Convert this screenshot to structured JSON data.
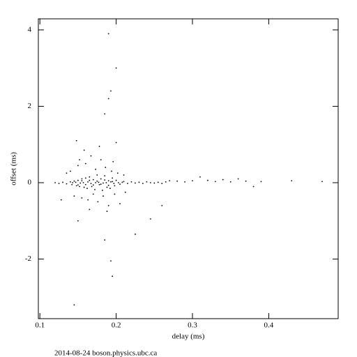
{
  "chart_data": {
    "type": "scatter",
    "xlabel": "delay (ms)",
    "ylabel": "offset (ms)",
    "footer": "2014-08-24 boson.physics.ubc.ca",
    "xlim": [
      0.098,
      0.491
    ],
    "ylim": [
      -3.56,
      4.29
    ],
    "xticks": [
      0.1,
      0.2,
      0.3,
      0.4
    ],
    "yticks": [
      -2,
      0,
      2,
      4
    ],
    "color": "#000000",
    "series": [
      {
        "x": [
          0.12,
          0.125,
          0.13,
          0.135,
          0.14,
          0.142,
          0.145,
          0.148,
          0.15,
          0.152,
          0.155,
          0.158,
          0.16,
          0.162,
          0.165,
          0.168,
          0.17,
          0.172,
          0.175,
          0.178,
          0.18,
          0.182,
          0.185,
          0.188,
          0.19,
          0.192,
          0.195,
          0.198,
          0.2,
          0.205,
          0.21,
          0.215,
          0.22,
          0.225,
          0.23,
          0.235,
          0.24,
          0.245,
          0.25,
          0.255,
          0.26,
          0.265,
          0.27,
          0.14,
          0.145,
          0.15,
          0.155,
          0.16,
          0.163,
          0.167,
          0.17,
          0.173,
          0.176,
          0.18,
          0.183,
          0.186,
          0.19,
          0.194,
          0.198,
          0.202,
          0.205,
          0.21,
          0.135,
          0.128,
          0.158,
          0.178,
          0.165,
          0.188,
          0.152,
          0.196,
          0.212,
          0.143,
          0.147,
          0.153,
          0.157,
          0.163,
          0.167,
          0.173,
          0.177,
          0.183,
          0.187,
          0.193,
          0.197,
          0.203,
          0.208,
          0.15,
          0.16,
          0.17,
          0.18,
          0.19,
          0.155,
          0.165,
          0.175,
          0.185,
          0.195,
          0.28,
          0.29,
          0.3,
          0.31,
          0.32,
          0.33,
          0.34,
          0.35,
          0.36,
          0.37,
          0.38,
          0.39,
          0.43,
          0.47,
          0.19,
          0.2,
          0.193,
          0.19,
          0.185,
          0.148,
          0.2,
          0.15,
          0.185,
          0.193,
          0.195,
          0.145,
          0.225,
          0.245,
          0.26
        ],
        "values": [
          0,
          -0.02,
          0.01,
          -0.03,
          0.02,
          -0.05,
          0.04,
          -0.08,
          0.06,
          -0.1,
          0.1,
          -0.12,
          0.12,
          -0.15,
          0.15,
          -0.1,
          0.08,
          -0.18,
          0.2,
          -0.05,
          0.1,
          -0.2,
          0.18,
          -0.12,
          0.05,
          -0.15,
          0.12,
          -0.08,
          0.06,
          -0.04,
          0.03,
          -0.02,
          0.02,
          -0.01,
          0.01,
          -0.02,
          0.02,
          0,
          -0.01,
          0.01,
          -0.02,
          0.02,
          0.05,
          0.3,
          -0.35,
          0.45,
          -0.4,
          0.5,
          -0.45,
          0.7,
          -0.3,
          0.35,
          -0.5,
          0.6,
          -0.35,
          0.4,
          -0.6,
          0.3,
          -0.3,
          0.25,
          -0.55,
          0.2,
          0.25,
          -0.45,
          0.85,
          0.95,
          -0.7,
          -0.75,
          0.6,
          0.55,
          -0.25,
          0,
          0.01,
          -0.01,
          0,
          0.02,
          -0.02,
          0,
          0.01,
          -0.01,
          0,
          0.02,
          -0.02,
          0,
          0.01,
          -0.06,
          -0.05,
          -0.06,
          -0.04,
          -0.07,
          0.05,
          0.06,
          0.04,
          0.07,
          0.03,
          0.04,
          0.02,
          0.05,
          0.15,
          0.06,
          0.03,
          0.08,
          0.02,
          0.1,
          0.04,
          -0.1,
          0.03,
          0.05,
          0.03,
          3.9,
          3.0,
          2.4,
          2.2,
          1.8,
          1.1,
          1.05,
          -1.0,
          -1.5,
          -2.05,
          -2.45,
          -3.2,
          -1.35,
          -0.95,
          -0.6
        ]
      }
    ]
  }
}
